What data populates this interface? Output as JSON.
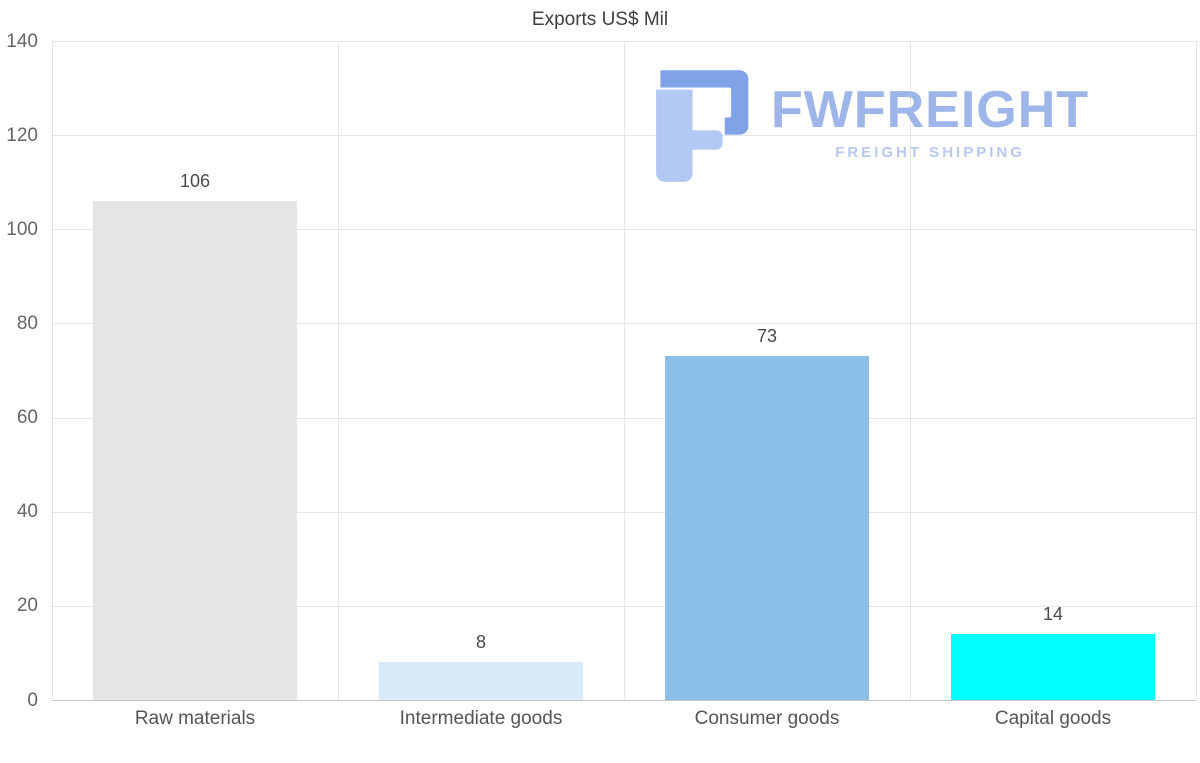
{
  "title": "Exports US$ Mil",
  "watermark": {
    "brand": "FWFREIGHT",
    "tagline": "FREIGHT SHIPPING",
    "brand_color": "#9db5e9",
    "logo_dark_color": "#7fa3e6",
    "logo_light_color": "#b3c8f2"
  },
  "chart_data": {
    "type": "bar",
    "title": "Exports US$ Mil",
    "categories": [
      "Raw materials",
      "Intermediate goods",
      "Consumer goods",
      "Capital goods"
    ],
    "values": [
      106,
      8,
      73,
      14
    ],
    "bar_colors": [
      "#e5e5e5",
      "#d9eafb",
      "#8dc0e9",
      "#00ffff"
    ],
    "xlabel": "",
    "ylabel": "",
    "ylim": [
      0,
      140
    ],
    "yticks": [
      0,
      20,
      40,
      60,
      80,
      100,
      120,
      140
    ],
    "grid": true,
    "legend": "none",
    "label_color": "#4a4a4a",
    "axis_label_color": "#666666",
    "grid_color": "#e6e6e6"
  }
}
